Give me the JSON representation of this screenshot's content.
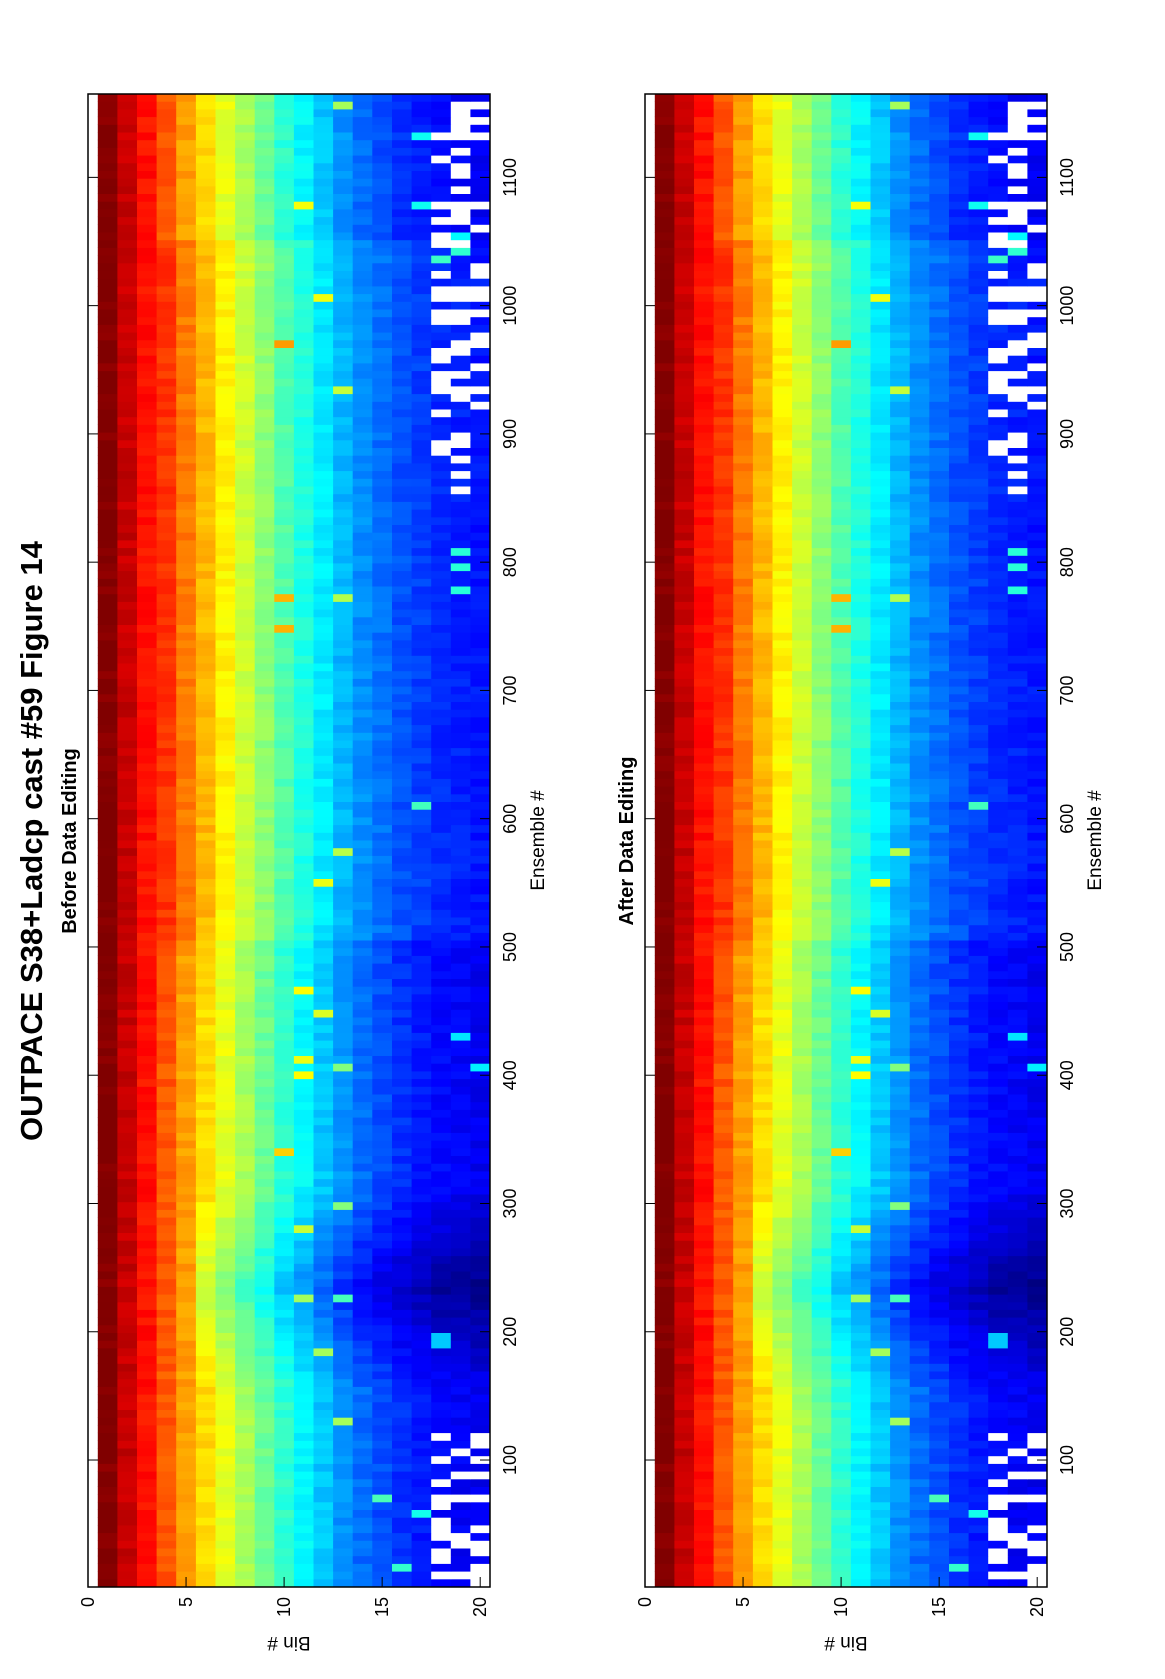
{
  "figure": {
    "title": "OUTPACE S38+Ladcp cast #59  Figure 14"
  },
  "colors": {
    "colormap": "jet",
    "flag_color": "#ffffff",
    "axis_color": "#000000"
  },
  "chart_data": [
    {
      "type": "heatmap",
      "panel": "before",
      "subtitle": "Before Data Editing",
      "xlabel": "Ensemble #",
      "ylabel": "Bin #",
      "xlim": [
        1,
        1165
      ],
      "ylim": [
        0,
        20.5
      ],
      "y_reversed": true,
      "xticks": [
        100,
        200,
        300,
        400,
        500,
        600,
        700,
        800,
        900,
        1000,
        1100
      ],
      "yticks": [
        0,
        5,
        10,
        15,
        20
      ],
      "bins": [
        1,
        2,
        3,
        4,
        5,
        6,
        7,
        8,
        9,
        10,
        11,
        12,
        13,
        14,
        15,
        16,
        17,
        18,
        19,
        20
      ],
      "relative_intensity_by_bin": [
        1.0,
        0.93,
        0.86,
        0.79,
        0.72,
        0.66,
        0.6,
        0.54,
        0.48,
        0.42,
        0.37,
        0.32,
        0.27,
        0.23,
        0.2,
        0.17,
        0.15,
        0.13,
        0.12,
        0.11
      ],
      "intensity_dip_ensembles": [
        180,
        280
      ],
      "flagged_region": "bins 18-20 near ensembles 1-120 and 850-1165"
    },
    {
      "type": "heatmap",
      "panel": "after",
      "subtitle": "After Data Editing",
      "xlabel": "Ensemble #",
      "ylabel": "Bin #",
      "xlim": [
        1,
        1165
      ],
      "ylim": [
        0,
        20.5
      ],
      "y_reversed": true,
      "xticks": [
        100,
        200,
        300,
        400,
        500,
        600,
        700,
        800,
        900,
        1000,
        1100
      ],
      "yticks": [
        0,
        5,
        10,
        15,
        20
      ],
      "bins": [
        1,
        2,
        3,
        4,
        5,
        6,
        7,
        8,
        9,
        10,
        11,
        12,
        13,
        14,
        15,
        16,
        17,
        18,
        19,
        20
      ],
      "relative_intensity_by_bin": [
        1.0,
        0.93,
        0.86,
        0.79,
        0.72,
        0.66,
        0.6,
        0.54,
        0.48,
        0.42,
        0.37,
        0.32,
        0.27,
        0.23,
        0.2,
        0.17,
        0.15,
        0.13,
        0.12,
        0.11
      ],
      "intensity_dip_ensembles": [
        180,
        280
      ],
      "flagged_region": "bins 18-20 near ensembles 1-120 and 850-1165"
    }
  ]
}
